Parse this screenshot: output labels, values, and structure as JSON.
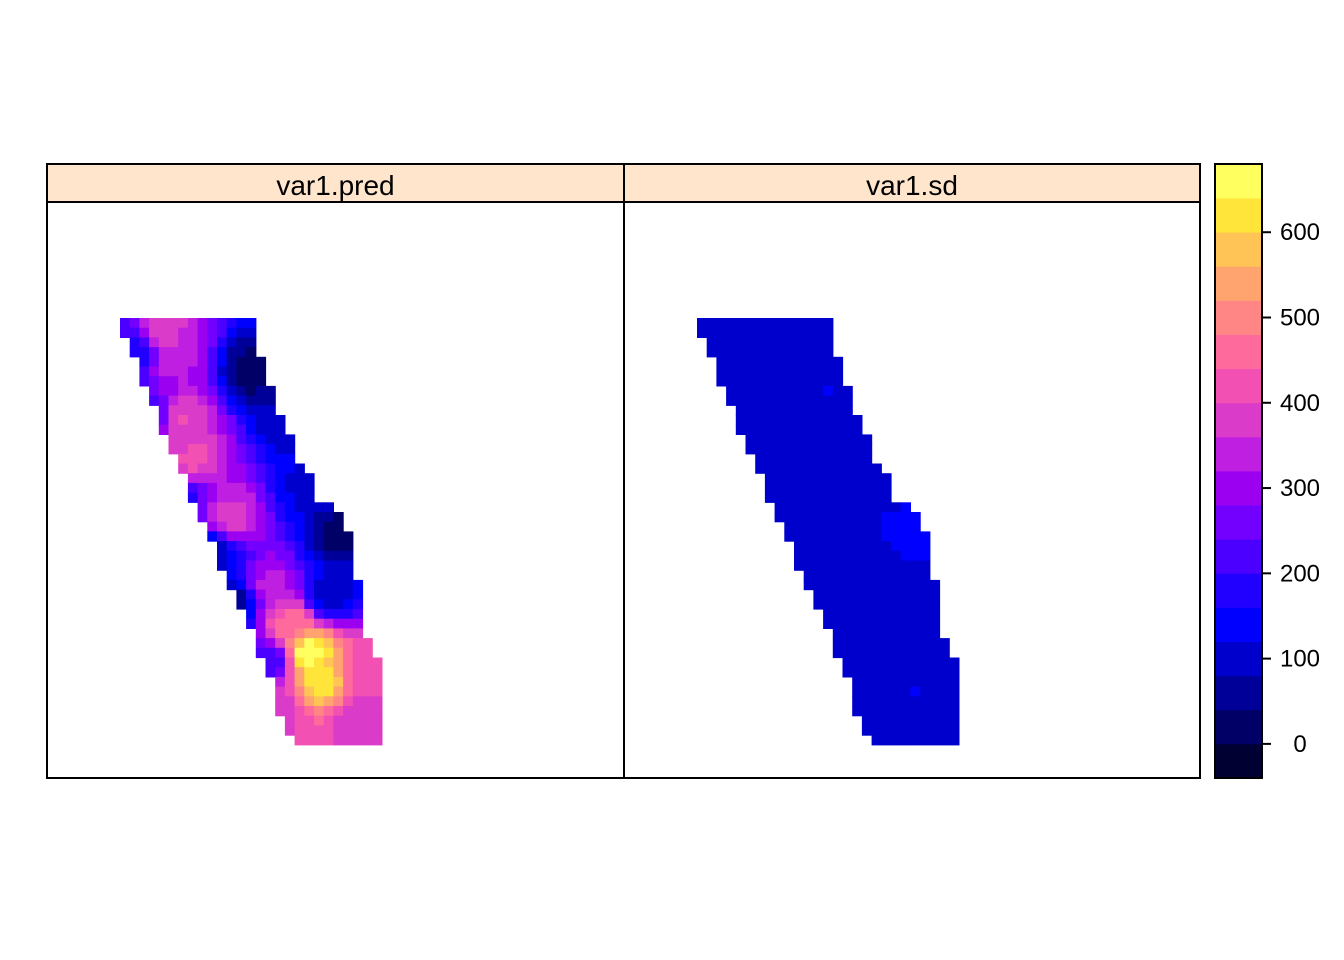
{
  "chart_data": {
    "type": "heatmap",
    "panels": [
      {
        "name": "var1.pred"
      },
      {
        "name": "var1.sd"
      }
    ],
    "colorbar": {
      "ticks": [
        0,
        100,
        200,
        300,
        400,
        500,
        600
      ],
      "range": [
        -40,
        680
      ],
      "breaks": [
        -40,
        0,
        40,
        80,
        120,
        160,
        200,
        240,
        280,
        320,
        360,
        400,
        440,
        480,
        520,
        560,
        600,
        640,
        680
      ],
      "colors": [
        "#000033",
        "#000066",
        "#000099",
        "#0000CC",
        "#0000FF",
        "#2200FF",
        "#4B00FF",
        "#7300FF",
        "#9B00F0",
        "#BF1FE0",
        "#DB3BC9",
        "#F251B3",
        "#FF6A9C",
        "#FF8685",
        "#FFA46E",
        "#FFC455",
        "#FFE43A",
        "#FFFF60"
      ]
    },
    "grid": {
      "cols": 36,
      "rows": 44,
      "row_extents": [
        [
          9,
          22
        ],
        [
          9,
          22
        ],
        [
          10,
          22
        ],
        [
          10,
          22
        ],
        [
          11,
          23
        ],
        [
          11,
          23
        ],
        [
          11,
          23
        ],
        [
          12,
          24
        ],
        [
          12,
          24
        ],
        [
          13,
          24
        ],
        [
          13,
          25
        ],
        [
          13,
          25
        ],
        [
          14,
          26
        ],
        [
          14,
          26
        ],
        [
          15,
          26
        ],
        [
          15,
          27
        ],
        [
          16,
          28
        ],
        [
          16,
          28
        ],
        [
          16,
          28
        ],
        [
          17,
          30
        ],
        [
          17,
          31
        ],
        [
          18,
          31
        ],
        [
          18,
          32
        ],
        [
          19,
          32
        ],
        [
          19,
          32
        ],
        [
          19,
          32
        ],
        [
          20,
          32
        ],
        [
          20,
          33
        ],
        [
          21,
          33
        ],
        [
          21,
          33
        ],
        [
          22,
          33
        ],
        [
          22,
          33
        ],
        [
          23,
          33
        ],
        [
          23,
          34
        ],
        [
          23,
          34
        ],
        [
          24,
          35
        ],
        [
          24,
          35
        ],
        [
          25,
          35
        ],
        [
          25,
          35
        ],
        [
          25,
          35
        ],
        [
          25,
          35
        ],
        [
          26,
          35
        ],
        [
          26,
          35
        ],
        [
          27,
          35
        ]
      ],
      "pred_control": [
        {
          "r": 1,
          "c": 13,
          "v": 380
        },
        {
          "r": 4,
          "c": 14,
          "v": 330
        },
        {
          "r": 10,
          "c": 15,
          "v": 400
        },
        {
          "r": 14,
          "c": 16,
          "v": 410
        },
        {
          "r": 20,
          "c": 20,
          "v": 380
        },
        {
          "r": 27,
          "c": 24,
          "v": 330
        },
        {
          "r": 31,
          "c": 26,
          "v": 460
        },
        {
          "r": 34,
          "c": 28,
          "v": 660
        },
        {
          "r": 37,
          "c": 29,
          "v": 620
        },
        {
          "r": 36,
          "c": 34,
          "v": 400
        },
        {
          "r": 41,
          "c": 33,
          "v": 380
        },
        {
          "r": 5,
          "c": 22,
          "v": 20
        },
        {
          "r": 10,
          "c": 26,
          "v": 80
        },
        {
          "r": 17,
          "c": 28,
          "v": 110
        },
        {
          "r": 22,
          "c": 31,
          "v": 20
        },
        {
          "r": 28,
          "c": 30,
          "v": 90
        },
        {
          "r": 3,
          "c": 10,
          "v": 170
        },
        {
          "r": 10,
          "c": 11,
          "v": 150
        },
        {
          "r": 18,
          "c": 14,
          "v": 120
        },
        {
          "r": 24,
          "c": 18,
          "v": 80
        },
        {
          "r": 29,
          "c": 20,
          "v": 40
        },
        {
          "r": 35,
          "c": 24,
          "v": 220
        },
        {
          "r": 40,
          "c": 25,
          "v": 380
        }
      ],
      "sd_control": [
        {
          "r": 1,
          "c": 12,
          "v": 95
        },
        {
          "r": 4,
          "c": 18,
          "v": 90
        },
        {
          "r": 9,
          "c": 16,
          "v": 92
        },
        {
          "r": 12,
          "c": 22,
          "v": 85
        },
        {
          "r": 16,
          "c": 25,
          "v": 92
        },
        {
          "r": 20,
          "c": 20,
          "v": 110
        },
        {
          "r": 25,
          "c": 27,
          "v": 100
        },
        {
          "r": 30,
          "c": 24,
          "v": 90
        },
        {
          "r": 34,
          "c": 28,
          "v": 95
        },
        {
          "r": 38,
          "c": 31,
          "v": 120
        },
        {
          "r": 42,
          "c": 33,
          "v": 118
        },
        {
          "r": 7,
          "c": 22,
          "v": 120
        },
        {
          "r": 22,
          "c": 30,
          "v": 130
        },
        {
          "r": 33,
          "c": 22,
          "v": 120
        }
      ]
    }
  }
}
